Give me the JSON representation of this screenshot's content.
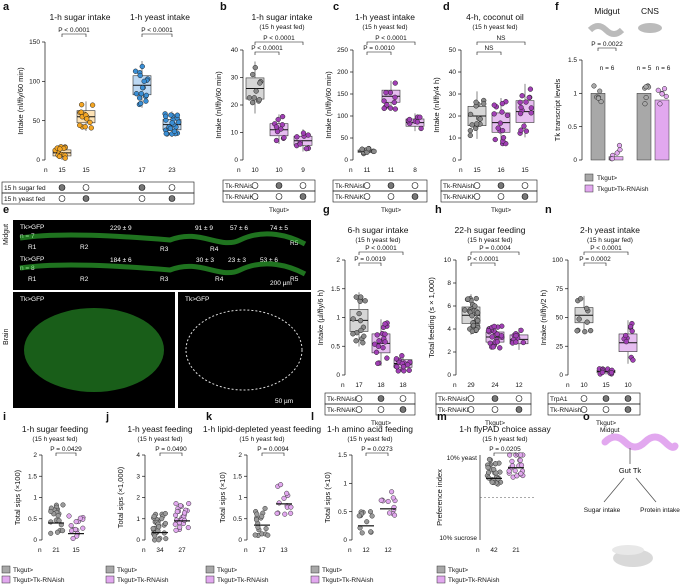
{
  "panel_letters": [
    "a",
    "b",
    "c",
    "d",
    "e",
    "f",
    "g",
    "h",
    "i",
    "j",
    "k",
    "l",
    "m",
    "n",
    "o"
  ],
  "genotypes": {
    "tk_rnai_sh": "Tk-RNAi",
    "tk_rnai_kk": "Tk-RNAi",
    "sh": "sh",
    "kk": "KK",
    "tkgut": "Tk",
    "gut": "gut",
    "trpa1": "TrpA1",
    "legend_ctrl": "Tk",
    "legend_rnai": ">Tk-RNAi",
    "fed_sugar": "15 h sugar fed",
    "fed_yeast": "15 h yeast fed"
  },
  "colors": {
    "sugar": "#f5a623",
    "yeast": "#3a8fd6",
    "purple": "#a13fb5",
    "lightpurple": "#e2a8ef",
    "grey": "#9e9e9e",
    "green": "#38d138"
  },
  "chart_data": [
    {
      "panel": "a",
      "type": "box-scatter",
      "groups": [
        {
          "title": "1-h sugar intake",
          "categories": [
            "15 h sugar fed",
            "15 h yeast fed"
          ],
          "n": [
            15,
            15
          ],
          "medians": [
            9,
            55
          ],
          "p": "P < 0.0001"
        },
        {
          "title": "1-h yeast intake",
          "categories": [
            "15 h sugar fed",
            "15 h yeast fed"
          ],
          "n": [
            17,
            23
          ],
          "medians": [
            95,
            45
          ],
          "p": "P < 0.0001"
        }
      ],
      "ylabel": "Intake (nl/fly/60 min)",
      "ylim": [
        0,
        150
      ],
      "yticks": [
        0,
        50,
        100,
        150
      ]
    },
    {
      "panel": "b",
      "title": "1-h sugar intake",
      "subtitle": "(15 h yeast fed)",
      "type": "box-scatter",
      "n": [
        10,
        10,
        9
      ],
      "medians": [
        26,
        11,
        7
      ],
      "p": [
        "P < 0.0001",
        "P < 0.0001"
      ],
      "ylabel": "Intake (nl/fly/60 min)",
      "ylim": [
        0,
        40
      ],
      "yticks": [
        0,
        10,
        20,
        30,
        40
      ]
    },
    {
      "panel": "c",
      "title": "1-h yeast intake",
      "subtitle": "(15 h yeast fed)",
      "type": "box-scatter",
      "n": [
        11,
        11,
        8
      ],
      "medians": [
        20,
        145,
        85
      ],
      "p": [
        "P < 0.0001",
        "P = 0.0010"
      ],
      "ylabel": "Intake (nl/fly/60 min)",
      "ylim": [
        0,
        250
      ],
      "yticks": [
        0,
        50,
        100,
        150,
        200,
        250
      ]
    },
    {
      "panel": "d",
      "title": "4-h, coconut oil",
      "subtitle": "(15 h yeast fed)",
      "type": "box-scatter",
      "n": [
        15,
        16,
        15
      ],
      "medians": [
        20,
        17,
        22
      ],
      "p": [
        "NS",
        "NS"
      ],
      "ylabel": "Intake (nl/fly/4 h)",
      "ylim": [
        0,
        50
      ],
      "yticks": [
        0,
        10,
        20,
        30,
        40,
        50
      ]
    },
    {
      "panel": "f",
      "type": "bar-scatter",
      "groups": [
        {
          "title": "Midgut",
          "n": [
            6
          ],
          "p": "P = 0.0022",
          "values": [
            1.0,
            0.05
          ]
        },
        {
          "title": "CNS",
          "n": [
            5,
            6
          ],
          "values": [
            1.0,
            0.9
          ]
        }
      ],
      "ylabel": "Tk transcript levels",
      "ylim": [
        0,
        1.5
      ],
      "yticks": [
        0,
        0.5,
        1.0,
        1.5
      ]
    },
    {
      "panel": "g",
      "title": "6-h sugar intake",
      "subtitle": "(15 h yeast fed)",
      "type": "box-scatter",
      "n": [
        17,
        18,
        18
      ],
      "medians": [
        0.95,
        0.55,
        0.2
      ],
      "p": [
        "P < 0.0001",
        "P = 0.0019"
      ],
      "ylabel": "Intake (µl/fly/6 h)",
      "ylim": [
        0,
        2.0
      ],
      "yticks": [
        0,
        0.5,
        1.0,
        1.5,
        2.0
      ]
    },
    {
      "panel": "h",
      "title": "22-h sugar feeding",
      "subtitle": "(15 h yeast fed)",
      "type": "box-scatter",
      "n": [
        29,
        24,
        12
      ],
      "medians": [
        5.2,
        3.3,
        3.1
      ],
      "p": [
        "P = 0.0004",
        "P < 0.0001"
      ],
      "ylabel": "Total feeding (s × 1,000)",
      "ylim": [
        0,
        10
      ],
      "yticks": [
        0,
        2,
        4,
        6,
        8,
        10
      ]
    },
    {
      "panel": "n",
      "title": "2-h yeast intake",
      "subtitle": "(15 h sugar fed)",
      "type": "box-scatter",
      "n": [
        10,
        15,
        10
      ],
      "medians": [
        52,
        3,
        28
      ],
      "p": [
        "P < 0.0001",
        "P = 0.0002"
      ],
      "ylabel": "Intake (nl/fly/2 h)",
      "ylim": [
        0,
        100
      ],
      "yticks": [
        0,
        25,
        50,
        75,
        100
      ]
    },
    {
      "panel": "i",
      "title": "1-h sugar feeding",
      "subtitle": "(15 h yeast fed)",
      "type": "scatter-mean",
      "n": [
        21,
        15
      ],
      "means": [
        0.4,
        0.15
      ],
      "p": "P = 0.0429",
      "ylabel": "Total sips (×100)",
      "ylim": [
        0,
        2.0
      ],
      "yticks": [
        0,
        0.5,
        1.0,
        1.5,
        2.0
      ]
    },
    {
      "panel": "j",
      "title": "1-h yeast feeding",
      "subtitle": "(15 h yeast fed)",
      "type": "scatter-mean",
      "n": [
        34,
        27
      ],
      "means": [
        0.35,
        0.9
      ],
      "p": "P = 0.0490",
      "ylabel": "Total sips (×1,000)",
      "ylim": [
        0,
        4
      ],
      "yticks": [
        0,
        1,
        2,
        3,
        4
      ]
    },
    {
      "panel": "k",
      "title": "1-h lipid-depleted yeast feeding",
      "subtitle": "(15 h yeast fed)",
      "type": "scatter-mean",
      "n": [
        17,
        13
      ],
      "means": [
        0.35,
        0.85
      ],
      "p": "P = 0.0094",
      "ylabel": "Total sips (×10)",
      "ylim": [
        0,
        2.0
      ],
      "yticks": [
        0,
        0.5,
        1.0,
        1.5,
        2.0
      ]
    },
    {
      "panel": "l",
      "title": "1-h amino acid feeding",
      "subtitle": "(15 h yeast fed)",
      "type": "scatter-mean",
      "n": [
        12,
        12
      ],
      "means": [
        0.25,
        0.55
      ],
      "p": "P = 0.0273",
      "ylabel": "Total sips (×10)",
      "ylim": [
        0,
        1.5
      ],
      "yticks": [
        0,
        0.5,
        1.0,
        1.5
      ]
    },
    {
      "panel": "m",
      "title": "1-h flyPAD choice assay",
      "subtitle": "(15 h yeast fed)",
      "type": "scatter-mean",
      "n": [
        42,
        21
      ],
      "means": [
        0.45,
        0.7
      ],
      "p": "P = 0.0205",
      "ylabel": "Preference index",
      "ylim": [
        -1,
        1
      ],
      "ytick_labels": [
        "10% yeast",
        "10% sucrose"
      ]
    }
  ],
  "panel_e": {
    "midgut_label": "Midgut",
    "brain_label": "Brain",
    "row1_label": "Tk>GFP",
    "row1_n": "n = 7",
    "row2_label": "Tk>GFP",
    "row2_n": "n = 8",
    "regions": [
      "R1",
      "R2",
      "R3",
      "R4",
      "R5"
    ],
    "row1_counts": [
      "229 ± 9",
      "91 ± 9",
      "57 ± 6",
      "74 ± 5"
    ],
    "row2_counts": [
      "184 ± 6",
      "30 ± 3",
      "23 ± 3",
      "53 ± 6"
    ],
    "scale1": "200 µm",
    "scale2": "50 µm",
    "brain1": "Tk>GFP",
    "brain2": "Tk>GFP"
  },
  "panel_o": {
    "midgut": "Midgut",
    "gut_tk": "Gut Tk",
    "sugar": "Sugar intake",
    "protein": "Protein intake"
  }
}
